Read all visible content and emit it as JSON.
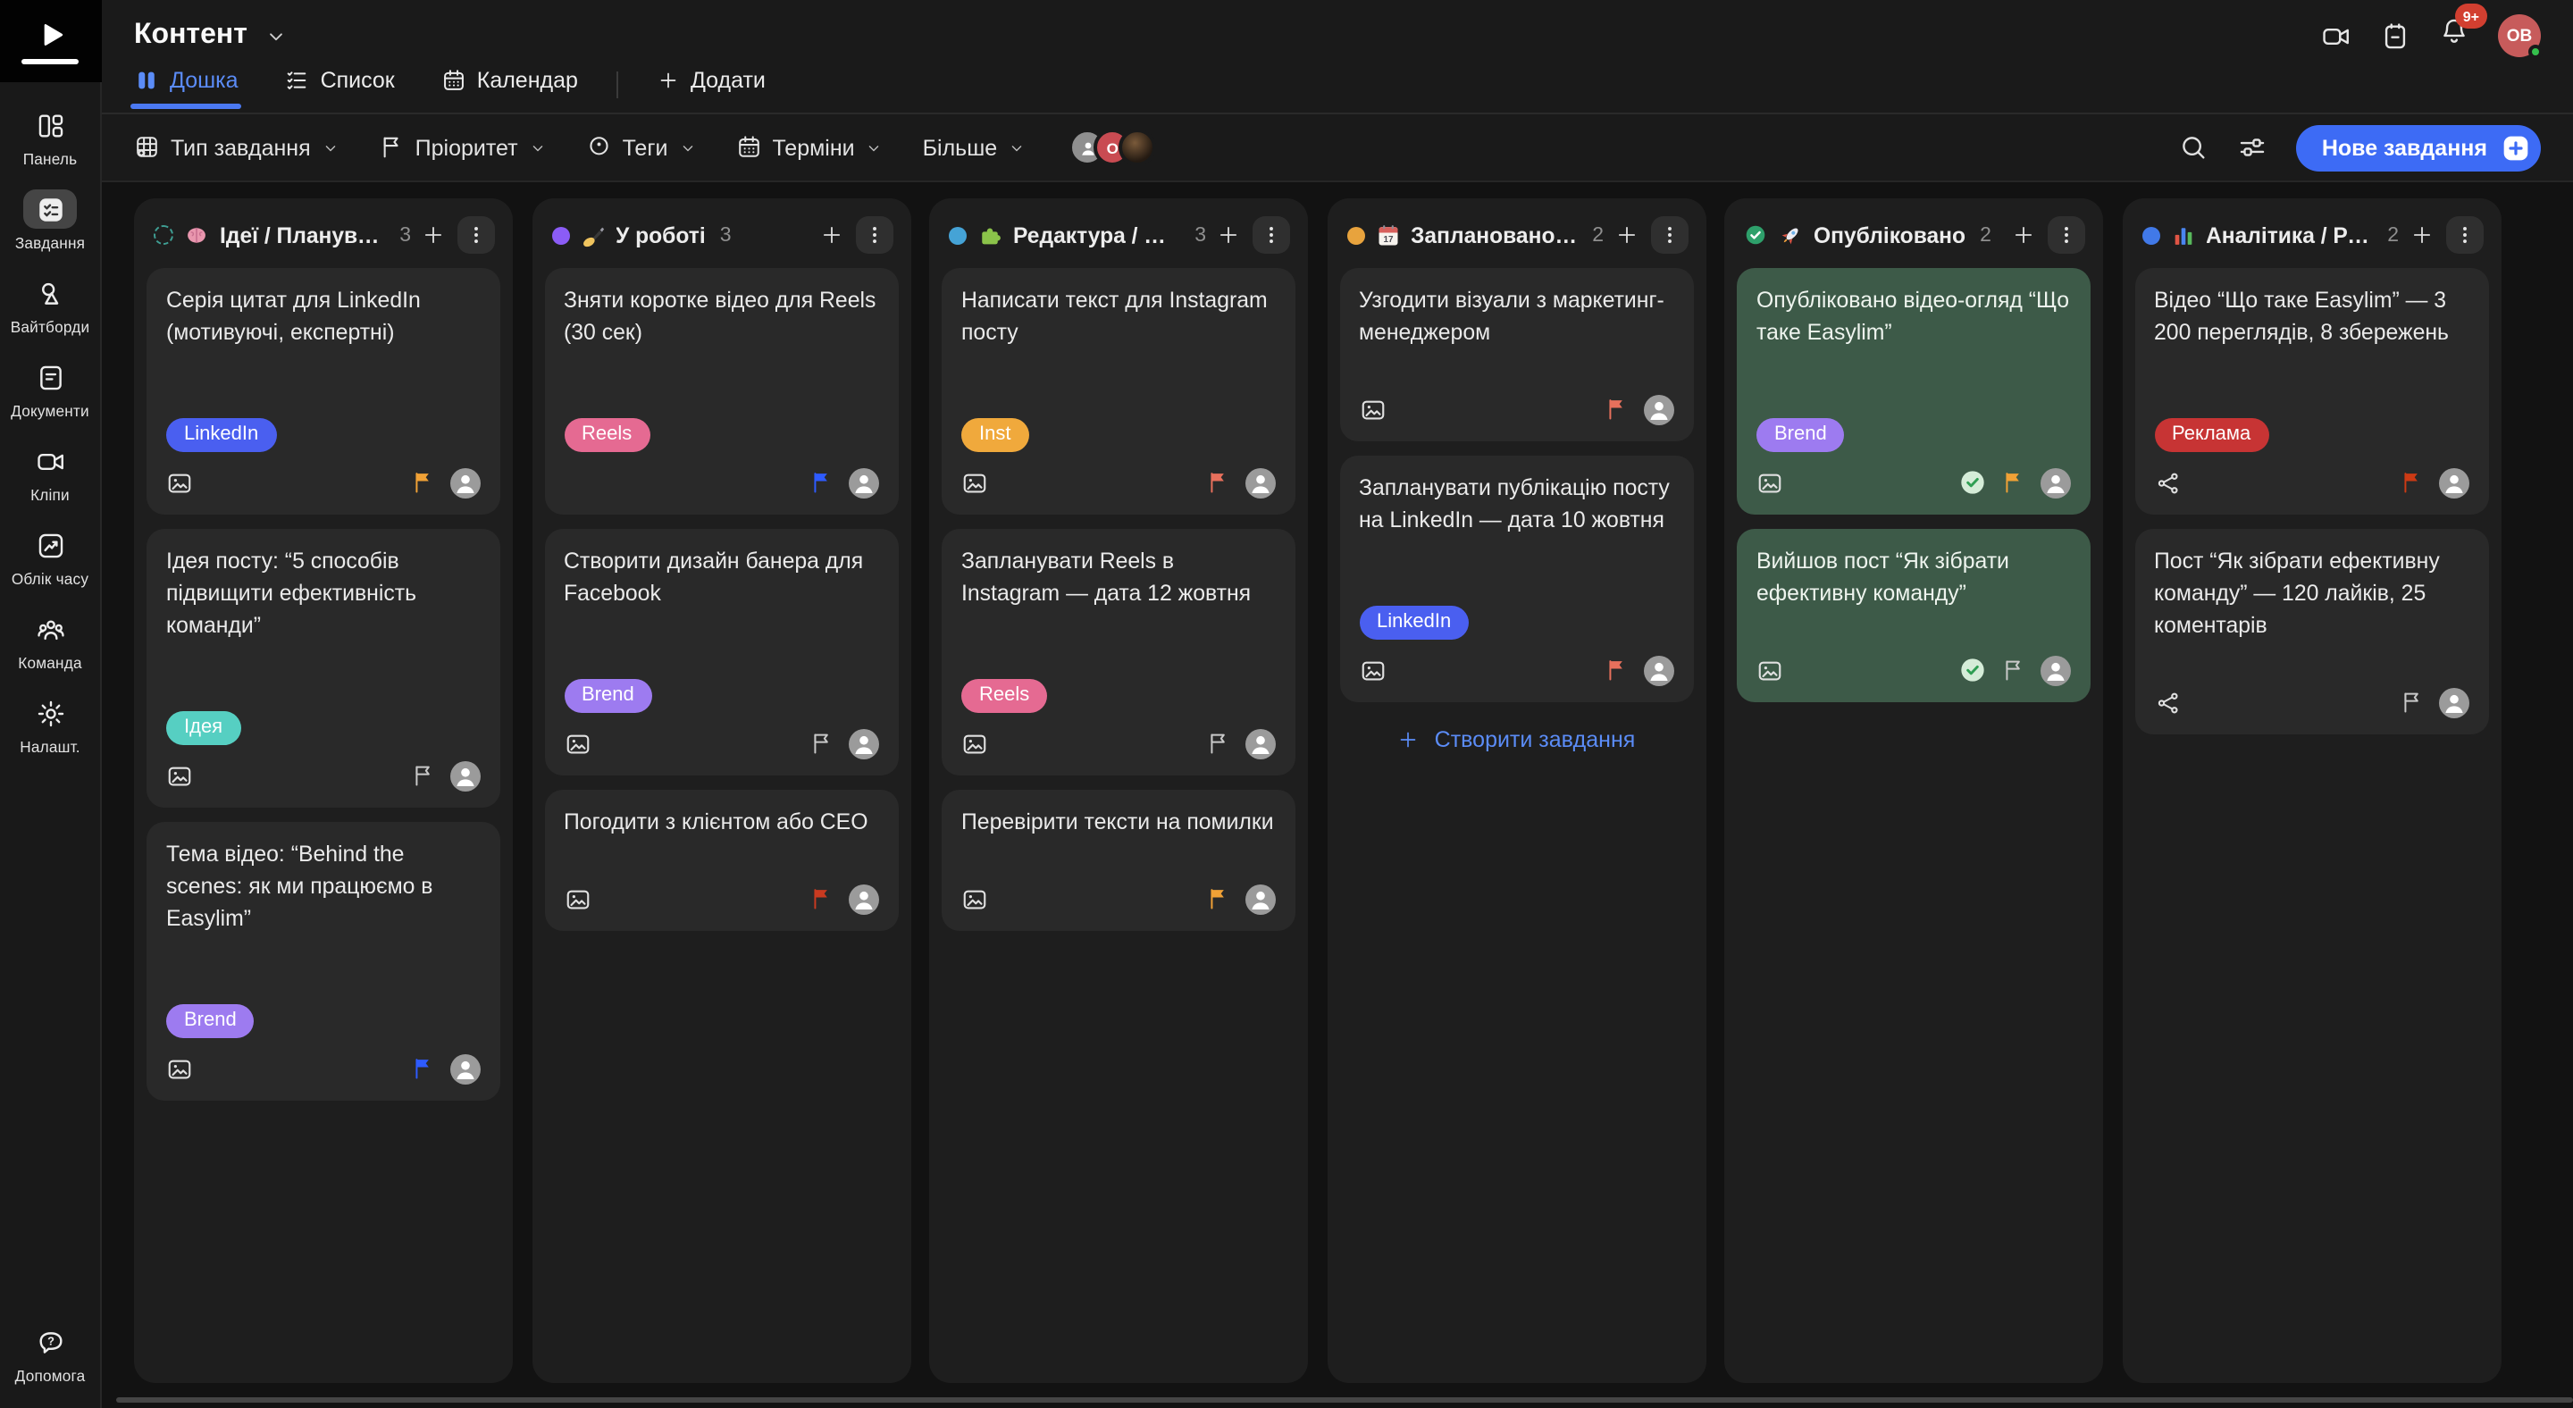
{
  "sidebar": {
    "items": [
      {
        "label": "Панель",
        "icon": "dashboard",
        "active": false
      },
      {
        "label": "Завдання",
        "icon": "tasks",
        "active": true
      },
      {
        "label": "Вайтборди",
        "icon": "whiteboard",
        "active": false
      },
      {
        "label": "Документи",
        "icon": "document",
        "active": false
      },
      {
        "label": "Кліпи",
        "icon": "camera",
        "active": false
      },
      {
        "label": "Облік часу",
        "icon": "timechart",
        "active": false
      },
      {
        "label": "Команда",
        "icon": "team",
        "active": false
      },
      {
        "label": "Налашт.",
        "icon": "gear",
        "active": false
      }
    ],
    "help": {
      "label": "Допомога",
      "icon": "help"
    }
  },
  "header": {
    "title": "Контент",
    "notification_badge": "9+",
    "user_initials": "ОВ",
    "tabs": [
      {
        "label": "Дошка",
        "icon": "kanban",
        "active": true
      },
      {
        "label": "Список",
        "icon": "list",
        "active": false
      },
      {
        "label": "Календар",
        "icon": "calendar",
        "active": false
      }
    ],
    "add_tab_label": "Додати"
  },
  "filterbar": {
    "filters": [
      {
        "label": "Тип завдання",
        "icon": "gridpen"
      },
      {
        "label": "Пріоритет",
        "icon": "flag-outline"
      },
      {
        "label": "Теги",
        "icon": "tagpin"
      },
      {
        "label": "Терміни",
        "icon": "calendar"
      },
      {
        "label": "Більше",
        "icon": null
      }
    ],
    "avatars": [
      {
        "type": "icon",
        "color": "#8f8f8f"
      },
      {
        "type": "letter",
        "label": "О",
        "color": "#c94b52"
      },
      {
        "type": "photo",
        "color": "#4a3423"
      }
    ],
    "new_task_label": "Нове завдання"
  },
  "board": {
    "columns": [
      {
        "title": "Ідеї / Планування",
        "count": "3",
        "emoji": "brain",
        "dot": {
          "style": "dashed",
          "color": "#3f9e93"
        },
        "cards": [
          {
            "title": "Серія цитат для LinkedIn (мотивуючі, експертні)",
            "tag": {
              "label": "LinkedIn",
              "color": "#4a5ff0"
            },
            "attachment": "image",
            "flag": {
              "type": "filled",
              "color": "#f0a136"
            }
          },
          {
            "title": "Ідея посту: “5 способів підвищити ефективність команди”",
            "tag": {
              "label": "Ідея",
              "color": "#56cfc2"
            },
            "attachment": "image",
            "flag": {
              "type": "outline"
            }
          },
          {
            "title": "Тема відео: “Behind the scenes: як ми працюємо в Easylim”",
            "tag": {
              "label": "Brend",
              "color": "#9d7bf0"
            },
            "attachment": "image",
            "flag": {
              "type": "filled",
              "color": "#2e5bff"
            }
          }
        ]
      },
      {
        "title": "У роботі",
        "count": "3",
        "emoji": "pen",
        "dot": {
          "style": "solid",
          "color": "#8b5cf6"
        },
        "cards": [
          {
            "title": "Зняти коротке відео для Reels (30 сек)",
            "tag": {
              "label": "Reels",
              "color": "#e56a92"
            },
            "attachment": "video",
            "flag": {
              "type": "filled",
              "color": "#2e5bff"
            }
          },
          {
            "title": "Створити дизайн банера для Facebook",
            "tag": {
              "label": "Brend",
              "color": "#9d7bf0"
            },
            "attachment": "image",
            "flag": {
              "type": "outline"
            }
          },
          {
            "title": "Погодити з клієнтом або CEO",
            "tag": null,
            "attachment": "image",
            "flag": {
              "type": "filled",
              "color": "#c93a20"
            }
          }
        ]
      },
      {
        "title": "Редактура / Пере…",
        "count": "3",
        "emoji": "puzzle",
        "dot": {
          "style": "solid",
          "color": "#45a3d6"
        },
        "cards": [
          {
            "title": "Написати текст для Instagram посту",
            "tag": {
              "label": "Inst",
              "color": "#f0a93c"
            },
            "attachment": "image",
            "flag": {
              "type": "filled",
              "color": "#e8705c"
            }
          },
          {
            "title": "Запланувати Reels в Instagram — дата 12 жовтня",
            "tag": {
              "label": "Reels",
              "color": "#e56a92"
            },
            "attachment": "image",
            "flag": {
              "type": "outline"
            }
          },
          {
            "title": "Перевірити тексти на помилки",
            "tag": null,
            "attachment": "image",
            "flag": {
              "type": "filled",
              "color": "#f0a136"
            }
          }
        ]
      },
      {
        "title": "Заплановано до п…",
        "count": "2",
        "emoji": "calendar17",
        "dot": {
          "style": "solid",
          "color": "#e8a33d"
        },
        "footer_link": "Створити завдання",
        "cards": [
          {
            "title": "Узгодити візуали з маркетинг-менеджером",
            "tag": null,
            "attachment": "image",
            "flag": {
              "type": "filled",
              "color": "#e8705c"
            }
          },
          {
            "title": "Запланувати публікацію посту на LinkedIn — дата 10 жовтня",
            "tag": {
              "label": "LinkedIn",
              "color": "#4a5ff0"
            },
            "attachment": "image",
            "flag": {
              "type": "filled",
              "color": "#e8705c"
            }
          }
        ]
      },
      {
        "title": "Опубліковано",
        "count": "2",
        "emoji": "rocket",
        "dot": {
          "style": "check",
          "color": "#2ea06b"
        },
        "cards": [
          {
            "title": "Опубліковано відео-огляд “Що таке Easylim”",
            "tag": {
              "label": "Brend",
              "color": "#9d7bf0"
            },
            "attachment": "image",
            "done": true,
            "flag": {
              "type": "filled",
              "color": "#f0a136"
            }
          },
          {
            "title": "Вийшов пост “Як зібрати ефективну команду”",
            "tag": null,
            "attachment": "image",
            "done": true,
            "flag": {
              "type": "outline"
            }
          }
        ]
      },
      {
        "title": "Аналітика / Резул…",
        "count": "2",
        "emoji": "barchart",
        "dot": {
          "style": "solid",
          "color": "#4179e8"
        },
        "cards": [
          {
            "title": "Відео “Що таке Easylim” — 3 200 переглядів, 8 збережень",
            "tag": {
              "label": "Реклама",
              "color": "#c73434"
            },
            "attachment": "share",
            "flag": {
              "type": "filled",
              "color": "#cc3a14"
            }
          },
          {
            "title": "Пост “Як зібрати ефективну команду” — 120 лайків, 25 коментарів",
            "tag": null,
            "attachment": "share",
            "flag": {
              "type": "outline"
            }
          }
        ]
      }
    ]
  }
}
